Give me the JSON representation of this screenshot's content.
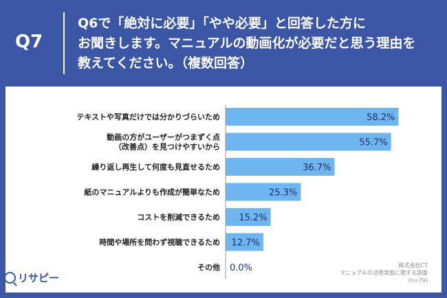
{
  "header": {
    "question_number": "Q7",
    "question_lines": [
      "Q6で「絶対に必要」「やや必要」と回答した方に",
      "お聞きします。マニュアルの動画化が必要だと思う理由を",
      "教えてください。（複数回答）"
    ]
  },
  "footnote": {
    "lines": [
      "株式会社CT",
      "マニュアルの活用実態に関する調査",
      "(n=79)"
    ]
  },
  "logo": {
    "text": "リサピー"
  },
  "colors": {
    "background": "#3b56a5",
    "bar": "#6fb6f0",
    "axis": "#999999"
  },
  "chart_data": {
    "type": "bar",
    "orientation": "horizontal",
    "categories": [
      [
        "テキストや写真だけでは分かりづらいため"
      ],
      [
        "動画の方がユーザーがつまずく点",
        "（改善点）を見つけやすいから"
      ],
      [
        "繰り返し再生して何度も見直せるため"
      ],
      [
        "紙のマニュアルよりも作成が簡単なため"
      ],
      [
        "コストを削減できるため"
      ],
      [
        "時間や場所を問わず視聴できるため"
      ],
      [
        "その他"
      ]
    ],
    "values": [
      58.2,
      55.7,
      36.7,
      25.3,
      15.2,
      12.7,
      0.0
    ],
    "value_labels": [
      "58.2%",
      "55.7%",
      "36.7%",
      "25.3%",
      "15.2%",
      "12.7%",
      "0.0%"
    ],
    "xlim": [
      0,
      100
    ]
  }
}
